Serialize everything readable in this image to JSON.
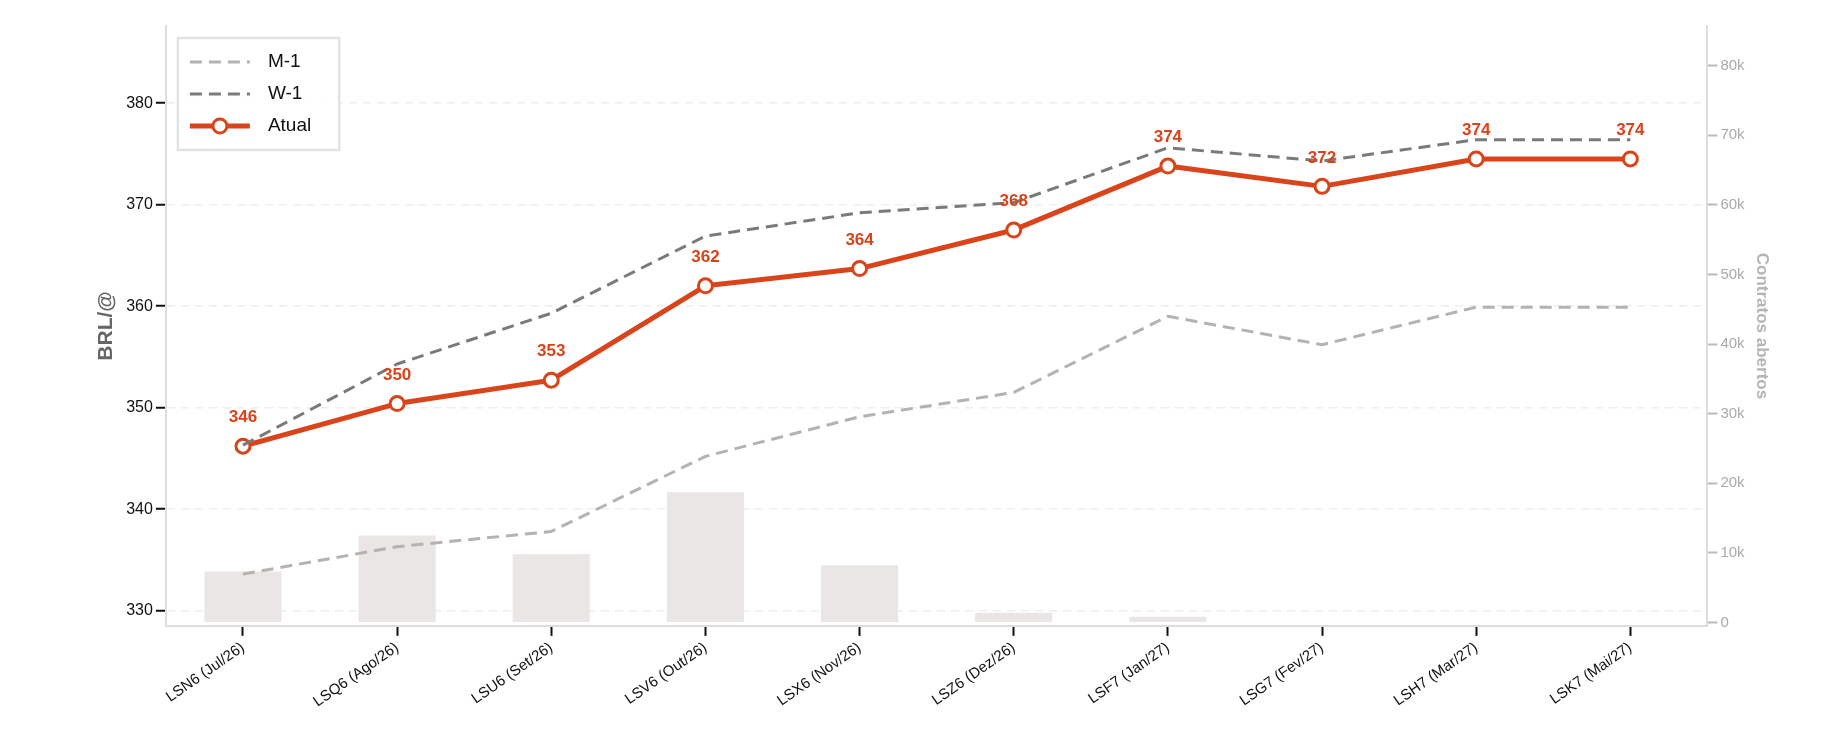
{
  "chart_data": {
    "type": "line",
    "categories": [
      "LSN6 (Jul/26)",
      "LSQ6 (Ago/26)",
      "LSU6 (Set/26)",
      "LSV6 (Out/26)",
      "LSX6 (Nov/26)",
      "LSZ6 (Dez/26)",
      "LSF7 (Jan/27)",
      "LSG7 (Fev/27)",
      "LSH7 (Mar/27)",
      "LSK7 (Mai/27)"
    ],
    "series": [
      {
        "type": "bar",
        "axis": "y2",
        "color": "#e9e6e5",
        "values": [
          7300,
          12500,
          9800,
          18700,
          8200,
          1400,
          800,
          0,
          0,
          0
        ]
      },
      {
        "name": "M-1",
        "color": "#b5b2b0",
        "line_style": "dashed",
        "marker": "none",
        "values": [
          333.6,
          336.3,
          337.8,
          345.2,
          349.1,
          351.5,
          359.0,
          356.2,
          359.9,
          359.9
        ]
      },
      {
        "name": "W-1",
        "color": "#7a7a7a",
        "line_style": "dashed",
        "marker": "none",
        "values": [
          346.3,
          354.3,
          359.3,
          366.9,
          369.2,
          370.2,
          375.6,
          374.3,
          376.4,
          376.4
        ]
      },
      {
        "name": "Atual",
        "color": "#d9441a",
        "line_style": "solid",
        "marker": "circle",
        "values": [
          346.2,
          350.4,
          352.7,
          362.0,
          363.7,
          367.5,
          373.8,
          371.8,
          374.5,
          374.5
        ],
        "value_labels": [
          "346",
          "350",
          "353",
          "362",
          "364",
          "368",
          "374",
          "372",
          "374",
          "374"
        ]
      }
    ],
    "ylabel": "BRL/@",
    "y2label": "Contratos abertos",
    "ylim": [
      328.5,
      387.6
    ],
    "yticks": [
      330,
      340,
      350,
      360,
      370,
      380
    ],
    "y2lim": [
      -500,
      85700
    ],
    "y2ticks": [
      0,
      {
        "value": 10000,
        "label": "10k"
      },
      {
        "value": 20000,
        "label": "20k"
      },
      {
        "value": 30000,
        "label": "30k"
      },
      {
        "value": 40000,
        "label": "40k"
      },
      {
        "value": 50000,
        "label": "50k"
      },
      {
        "value": 60000,
        "label": "60k"
      },
      {
        "value": 70000,
        "label": "70k"
      },
      {
        "value": 80000,
        "label": "80k"
      }
    ],
    "grid": "y",
    "legend": "top left"
  }
}
